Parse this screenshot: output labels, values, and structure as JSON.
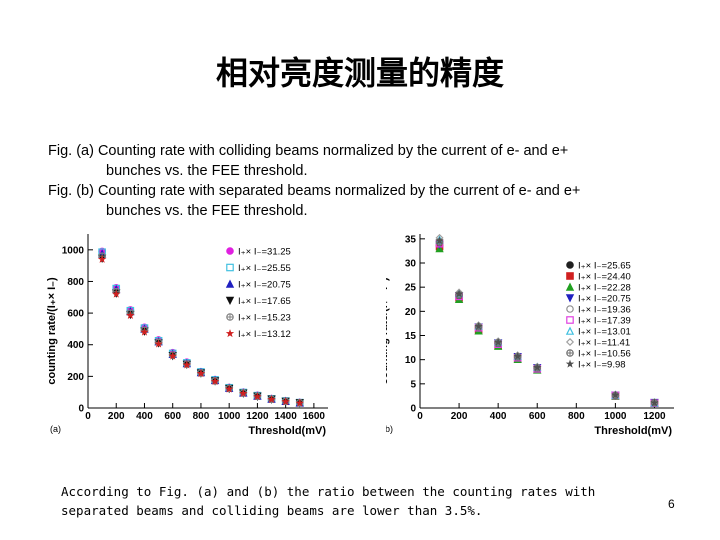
{
  "slide": {
    "title": "相对亮度测量的精度",
    "caption": [
      "Fig. (a) Counting rate with colliding beams normalized by the current of e- and e+",
      "bunches vs. the FEE threshold.",
      "Fig. (b) Counting rate with separated beams normalized by the current of e- and e+",
      "bunches vs. the FEE threshold."
    ],
    "body_text": "According to Fig. (a) and (b) the ratio between the counting rates with\nseparated beams and colliding beams are lower than 3.5%.",
    "page_number": "6"
  },
  "chart_data": [
    {
      "type": "scatter",
      "panel_label": "(a)",
      "xlabel": "Threshold(mV)",
      "ylabel": "counting rate/(I₊× I₋)",
      "xlim": [
        0,
        1700
      ],
      "ylim": [
        0,
        1100
      ],
      "xticks": [
        0,
        200,
        400,
        600,
        800,
        1000,
        1200,
        1400,
        1600
      ],
      "yticks": [
        0,
        200,
        400,
        600,
        800,
        1000
      ],
      "legend_position": "top-right",
      "x": [
        100,
        200,
        300,
        400,
        500,
        600,
        700,
        800,
        900,
        1000,
        1100,
        1200,
        1300,
        1400,
        1500
      ],
      "series": [
        {
          "name": "I₊× I₋=31.25",
          "marker": "circle",
          "color": "#e020e0",
          "values": [
            990,
            760,
            620,
            510,
            430,
            350,
            290,
            230,
            180,
            130,
            100,
            80,
            60,
            45,
            35
          ]
        },
        {
          "name": "I₊× I₋=25.55",
          "marker": "square-open",
          "color": "#40c0e0",
          "values": [
            985,
            755,
            615,
            505,
            425,
            345,
            285,
            228,
            178,
            128,
            98,
            78,
            58,
            44,
            34
          ]
        },
        {
          "name": "I₊× I₋=20.75",
          "marker": "triangle-up",
          "color": "#2020c0",
          "values": [
            975,
            750,
            610,
            500,
            420,
            340,
            282,
            225,
            175,
            126,
            96,
            76,
            57,
            43,
            33
          ]
        },
        {
          "name": "I₊× I₋=17.65",
          "marker": "triangle-down",
          "color": "#101010",
          "values": [
            945,
            725,
            590,
            485,
            410,
            330,
            275,
            220,
            170,
            122,
            93,
            73,
            55,
            41,
            32
          ]
        },
        {
          "name": "I₊× I₋=15.23",
          "marker": "circle-cross",
          "color": "#808080",
          "values": [
            960,
            735,
            600,
            492,
            415,
            335,
            278,
            222,
            172,
            124,
            95,
            75,
            56,
            42,
            33
          ]
        },
        {
          "name": "I₊× I₋=13.12",
          "marker": "star",
          "color": "#d02020",
          "values": [
            940,
            720,
            585,
            480,
            405,
            328,
            272,
            218,
            168,
            120,
            92,
            72,
            54,
            40,
            31
          ]
        }
      ]
    },
    {
      "type": "scatter",
      "panel_label": "(b)",
      "xlabel": "Threshold(mV)",
      "ylabel": "counting rate/(I₊× I₋)",
      "xlim": [
        0,
        1300
      ],
      "ylim": [
        0,
        36
      ],
      "xticks": [
        0,
        200,
        400,
        600,
        800,
        1000,
        1200
      ],
      "yticks": [
        0,
        5,
        10,
        15,
        20,
        25,
        30,
        35
      ],
      "legend_position": "right",
      "x": [
        100,
        200,
        300,
        400,
        500,
        600,
        1000,
        1200
      ],
      "series": [
        {
          "name": "I₊× I₋=25.65",
          "marker": "circle",
          "color": "#202020",
          "values": [
            33.6,
            23.0,
            16.5,
            13.3,
            10.5,
            8.2,
            2.6,
            1.1
          ]
        },
        {
          "name": "I₊× I₋=24.40",
          "marker": "square",
          "color": "#d02020",
          "values": [
            33.4,
            22.8,
            16.2,
            13.0,
            10.3,
            8.0,
            2.5,
            1.0
          ]
        },
        {
          "name": "I₊× I₋=22.28",
          "marker": "triangle-up",
          "color": "#20a020",
          "values": [
            33.0,
            22.5,
            16.0,
            12.8,
            10.1,
            7.9,
            2.5,
            1.0
          ]
        },
        {
          "name": "I₊× I₋=20.75",
          "marker": "triangle-down",
          "color": "#2020c0",
          "values": [
            33.8,
            23.2,
            16.7,
            13.4,
            10.6,
            8.3,
            2.6,
            1.1
          ]
        },
        {
          "name": "I₊× I₋=19.36",
          "marker": "circle-open",
          "color": "#909090",
          "values": [
            34.5,
            23.5,
            16.9,
            13.6,
            10.7,
            8.4,
            2.7,
            1.1
          ]
        },
        {
          "name": "I₊× I₋=17.39",
          "marker": "square-open",
          "color": "#e040e0",
          "values": [
            34.0,
            23.1,
            16.6,
            13.2,
            10.4,
            8.1,
            2.6,
            1.0
          ]
        },
        {
          "name": "I₊× I₋=13.01",
          "marker": "triangle-open",
          "color": "#40c0e0",
          "values": [
            34.8,
            23.7,
            17.0,
            13.7,
            10.8,
            8.5,
            2.7,
            1.1
          ]
        },
        {
          "name": "I₊× I₋=11.41",
          "marker": "diamond-open",
          "color": "#a0a0a0",
          "values": [
            35.2,
            23.9,
            17.1,
            13.8,
            10.9,
            8.5,
            2.7,
            1.1
          ]
        },
        {
          "name": "I₊× I₋=10.56",
          "marker": "circle-cross",
          "color": "#707070",
          "values": [
            34.3,
            23.4,
            16.8,
            13.5,
            10.6,
            8.3,
            2.6,
            1.1
          ]
        },
        {
          "name": "I₊× I₋=9.98",
          "marker": "star",
          "color": "#505050",
          "values": [
            34.6,
            23.6,
            16.9,
            13.6,
            10.7,
            8.4,
            2.7,
            1.1
          ]
        }
      ]
    }
  ]
}
